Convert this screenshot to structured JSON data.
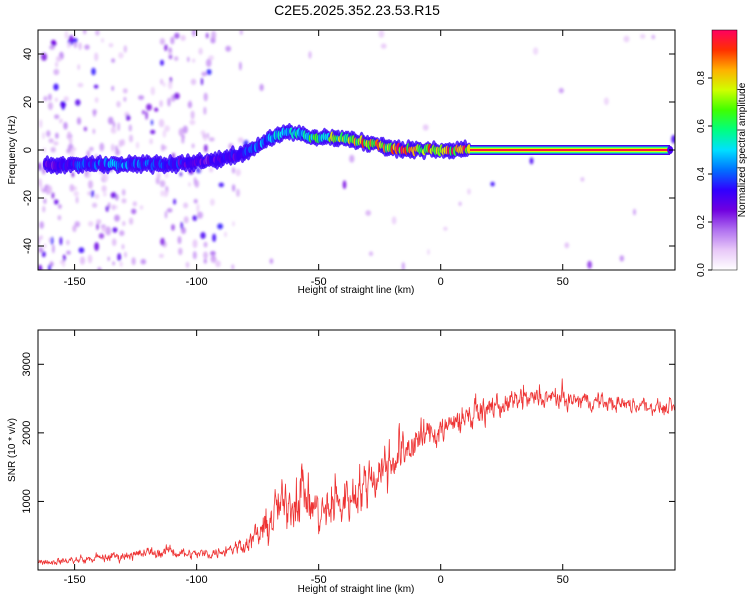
{
  "title": "C2E5.2025.352.23.53.R15",
  "chart_data": [
    {
      "type": "heatmap",
      "name": "spectrogram",
      "xlabel": "Height of straight line (km)",
      "ylabel": "Frequency (Hz)",
      "xlim": [
        -165,
        96
      ],
      "ylim": [
        -50,
        50
      ],
      "xticks": [
        -150,
        -100,
        -50,
        0,
        50
      ],
      "xtick_labels": [
        "-150",
        "-100",
        "-50",
        "0",
        "50"
      ],
      "yticks": [
        -40,
        -20,
        0,
        20,
        40
      ],
      "ytick_labels": [
        "-40",
        "-20",
        "0",
        "20",
        "40"
      ],
      "ridge_x": [
        -160,
        -150,
        -140,
        -130,
        -120,
        -110,
        -100,
        -90,
        -80,
        -75,
        -70,
        -65,
        -60,
        -55,
        -50,
        -45,
        -40,
        -35,
        -30,
        -25,
        -20,
        -15,
        -10,
        -5,
        0,
        5,
        10,
        15,
        30,
        50,
        70,
        94
      ],
      "ridge_y": [
        -6,
        -6,
        -6,
        -6,
        -6,
        -6,
        -5,
        -4,
        -1,
        2,
        5,
        7,
        7,
        6,
        5,
        5,
        5,
        4,
        3,
        2,
        1,
        0,
        0,
        0,
        0,
        0,
        0,
        0,
        0,
        0,
        0,
        0
      ],
      "ridge_amplitude": [
        0.3,
        0.35,
        0.4,
        0.45,
        0.4,
        0.35,
        0.3,
        0.3,
        0.35,
        0.4,
        0.45,
        0.5,
        0.5,
        0.55,
        0.6,
        0.7,
        0.75,
        0.8,
        0.85,
        0.85,
        0.85,
        0.9,
        0.9,
        0.9,
        0.9,
        0.9,
        0.9,
        0.95,
        0.95,
        0.95,
        0.95,
        0.95
      ]
    },
    {
      "type": "colorbar",
      "name": "amplitude-colorbar",
      "label": "Normalized spectral amplitude",
      "range": [
        0,
        1
      ],
      "ticks": [
        0,
        0.2,
        0.4,
        0.6,
        0.8
      ],
      "tick_labels": [
        "0.0",
        "0.2",
        "0.4",
        "0.6",
        "0.8"
      ],
      "colors": [
        "#ffffff",
        "#e8c8f8",
        "#b070f0",
        "#7000e0",
        "#3000ff",
        "#0070ff",
        "#00e0ff",
        "#00ff80",
        "#40ff00",
        "#d0ff00",
        "#ffb000",
        "#ff3000",
        "#ff0060"
      ]
    },
    {
      "type": "line",
      "name": "snr",
      "xlabel": "Height of straight line (km)",
      "ylabel": "SNR (10 * v/v)",
      "xlim": [
        -165,
        96
      ],
      "ylim": [
        0,
        3500
      ],
      "xticks": [
        -150,
        -100,
        -50,
        0,
        50
      ],
      "xtick_labels": [
        "-150",
        "-100",
        "-50",
        "0",
        "50"
      ],
      "yticks": [
        1000,
        2000,
        3000
      ],
      "ytick_labels": [
        "1000",
        "2000",
        "3000"
      ],
      "color": "#ee3333",
      "envelope_x": [
        -165,
        -150,
        -140,
        -130,
        -120,
        -110,
        -100,
        -90,
        -80,
        -75,
        -70,
        -65,
        -60,
        -57,
        -55,
        -50,
        -45,
        -40,
        -35,
        -30,
        -25,
        -20,
        -15,
        -10,
        -5,
        0,
        5,
        10,
        20,
        30,
        40,
        50,
        60,
        70,
        80,
        90,
        96
      ],
      "envelope_mean": [
        120,
        140,
        170,
        210,
        250,
        270,
        230,
        260,
        400,
        500,
        750,
        950,
        1050,
        1300,
        1000,
        800,
        900,
        1000,
        1150,
        1300,
        1500,
        1650,
        1750,
        1900,
        2000,
        2050,
        2150,
        2250,
        2350,
        2450,
        2500,
        2480,
        2460,
        2440,
        2400,
        2380,
        2380
      ],
      "envelope_spread": [
        120,
        120,
        150,
        180,
        200,
        200,
        180,
        200,
        350,
        450,
        700,
        900,
        1100,
        1400,
        1000,
        800,
        800,
        850,
        900,
        900,
        900,
        800,
        750,
        700,
        650,
        600,
        550,
        500,
        450,
        400,
        380,
        340,
        320,
        300,
        280,
        260,
        250
      ]
    }
  ]
}
